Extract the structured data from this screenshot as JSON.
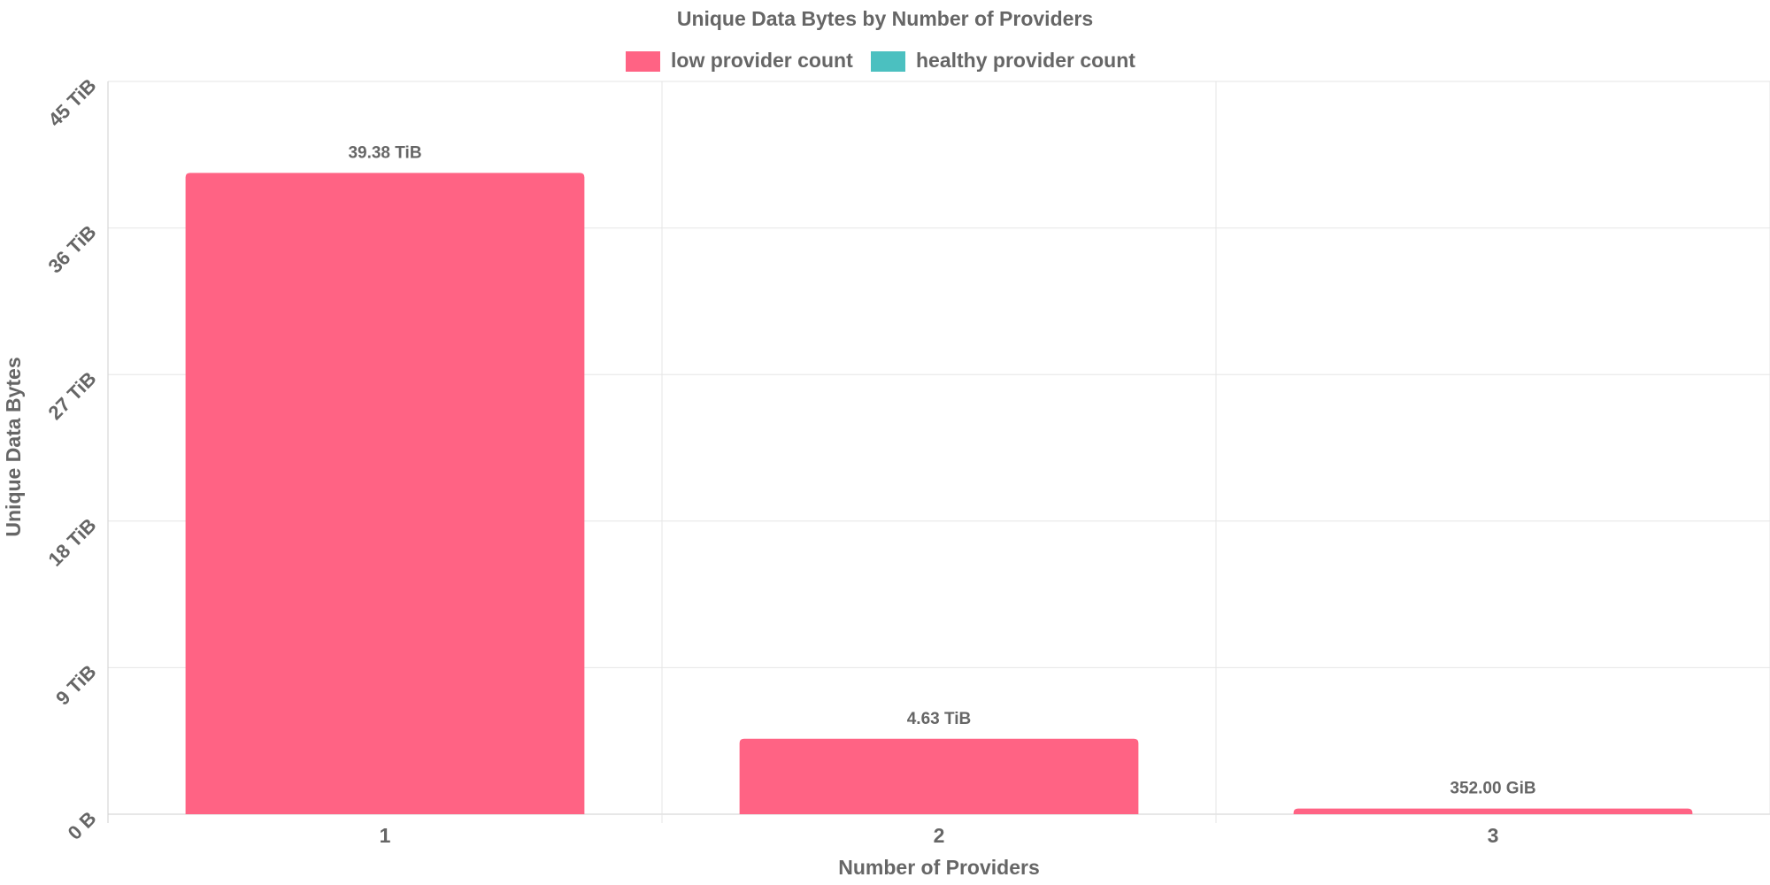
{
  "chart_data": {
    "type": "bar",
    "title": "Unique Data Bytes by Number of Providers",
    "xlabel": "Number of Providers",
    "ylabel": "Unique Data Bytes",
    "categories": [
      "1",
      "2",
      "3"
    ],
    "ylim": [
      0,
      45
    ],
    "y_unit": "TiB",
    "y_ticks": [
      0,
      9,
      18,
      27,
      36,
      45
    ],
    "y_tick_labels": [
      "0 B",
      "9 TiB",
      "18 TiB",
      "27 TiB",
      "36 TiB",
      "45 TiB"
    ],
    "grid": true,
    "legend_position": "top-center",
    "series": [
      {
        "name": "low provider count",
        "color": "#ff6384",
        "values": [
          39.38,
          4.63,
          0.34375
        ],
        "data_labels": [
          "39.38 TiB",
          "4.63 TiB",
          "352.00 GiB"
        ]
      },
      {
        "name": "healthy provider count",
        "color": "#4bc0c0",
        "values": [
          0,
          0,
          0
        ],
        "data_labels": []
      }
    ]
  }
}
